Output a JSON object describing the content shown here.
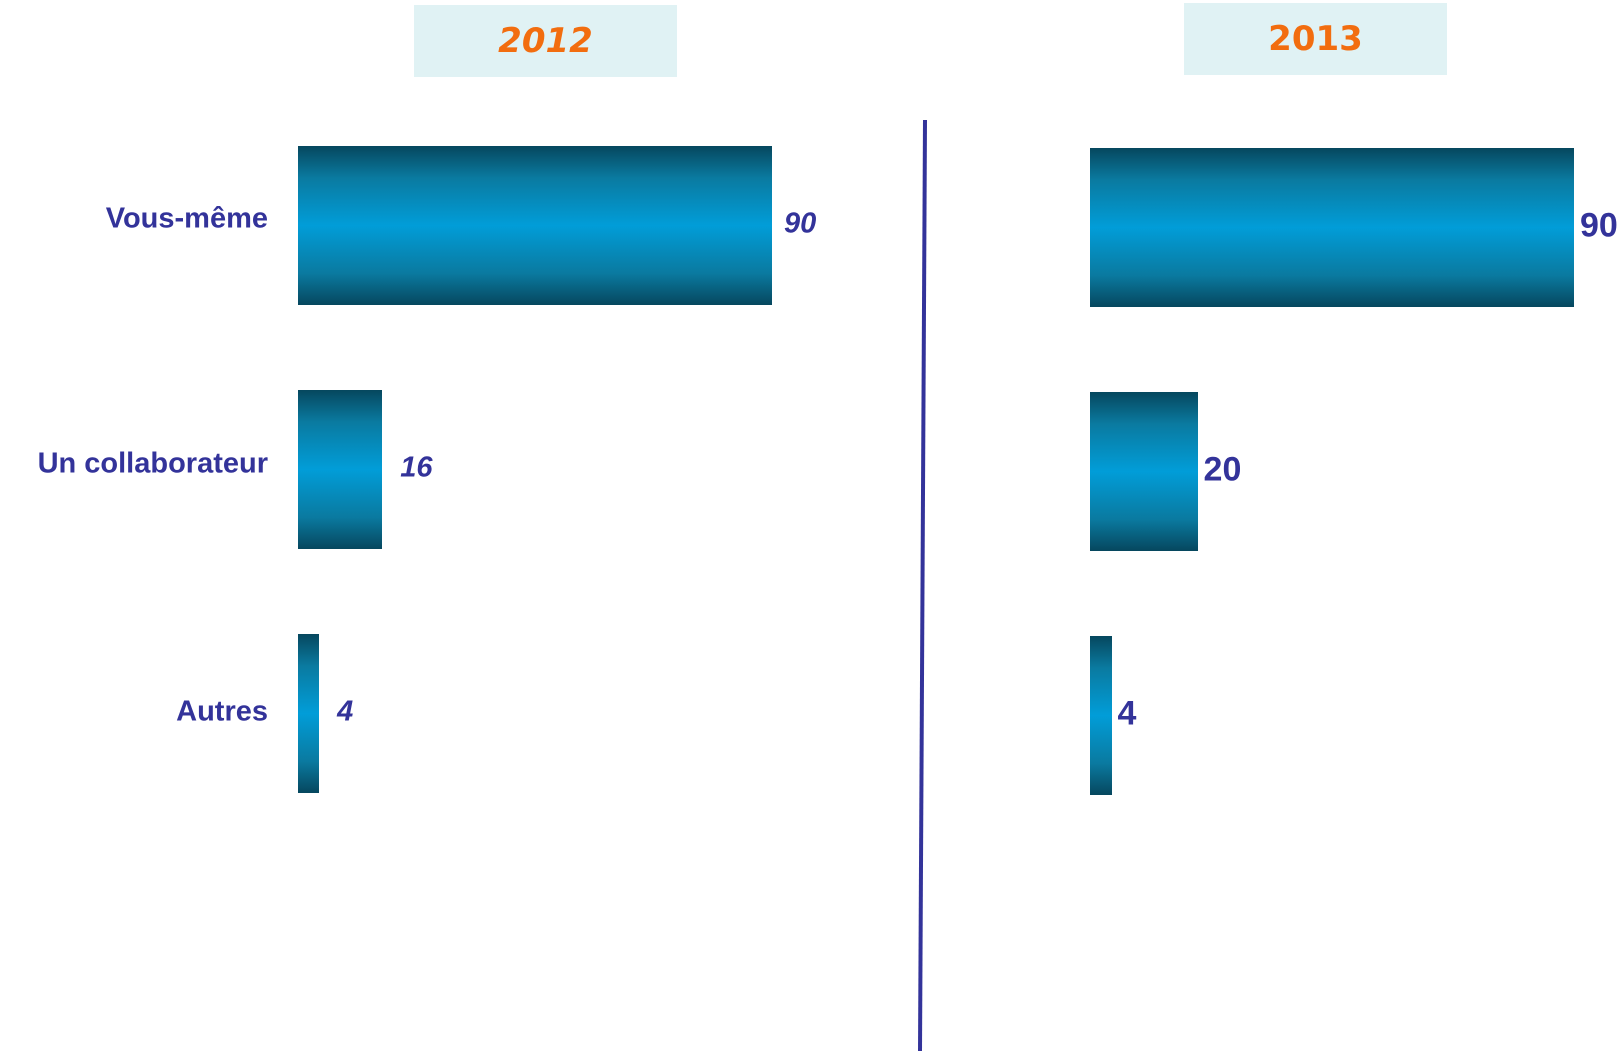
{
  "chart_data": [
    {
      "type": "bar",
      "orientation": "horizontal",
      "title": "2012",
      "categories": [
        "Vous-même",
        "Un collaborateur",
        "Autres"
      ],
      "values": [
        90,
        16,
        4
      ],
      "value_labels": [
        "90",
        "16",
        "4"
      ],
      "xlim": [
        0,
        90
      ]
    },
    {
      "type": "bar",
      "orientation": "horizontal",
      "title": "2013",
      "categories": [
        "Vous-même",
        "Un collaborateur",
        "Autres"
      ],
      "values": [
        90,
        20,
        4
      ],
      "value_labels": [
        "90",
        "20",
        "4"
      ],
      "xlim": [
        0,
        90
      ]
    }
  ],
  "colors": {
    "bar_dark": "#06475e",
    "bar_light": "#019dd8",
    "label_text": "#33339a",
    "year_text": "#f26d0f",
    "year_box": "#e0f2f4",
    "divider": "#33339a"
  }
}
